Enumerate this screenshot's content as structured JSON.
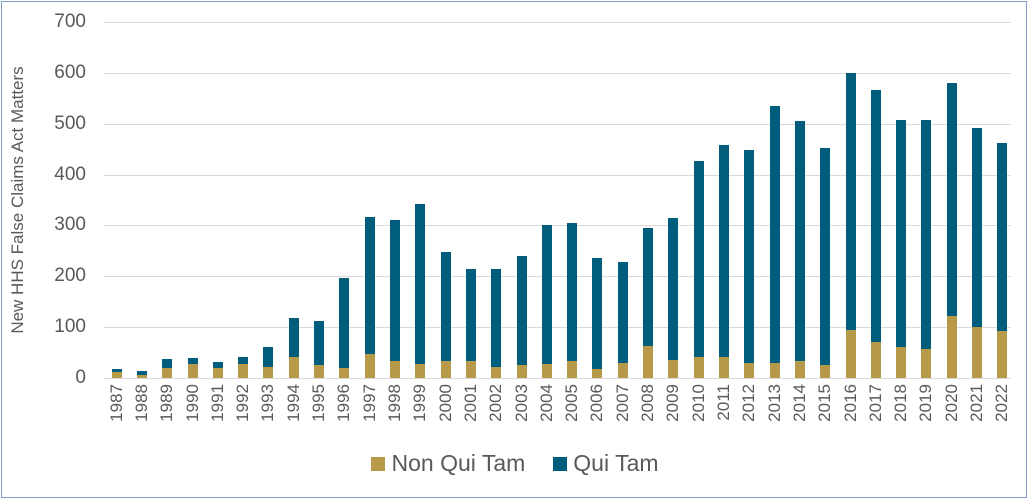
{
  "chart_data": {
    "type": "bar",
    "stacked": true,
    "title": "",
    "xlabel": "",
    "ylabel": "New HHS False Claims Act Matters",
    "ylim": [
      0,
      700
    ],
    "yticks": [
      0,
      100,
      200,
      300,
      400,
      500,
      600,
      700
    ],
    "grid": true,
    "legend_position": "bottom",
    "categories": [
      "1987",
      "1988",
      "1989",
      "1990",
      "1991",
      "1992",
      "1993",
      "1994",
      "1995",
      "1996",
      "1997",
      "1998",
      "1999",
      "2000",
      "2001",
      "2002",
      "2003",
      "2004",
      "2005",
      "2006",
      "2007",
      "2008",
      "2009",
      "2010",
      "2011",
      "2012",
      "2013",
      "2014",
      "2015",
      "2016",
      "2017",
      "2018",
      "2019",
      "2020",
      "2021",
      "2022"
    ],
    "series": [
      {
        "name": "Non Qui Tam",
        "color": "#b7994a",
        "values": [
          12,
          6,
          20,
          27,
          20,
          27,
          22,
          42,
          26,
          20,
          47,
          34,
          28,
          34,
          33,
          21,
          26,
          27,
          34,
          18,
          29,
          63,
          35,
          42,
          42,
          30,
          30,
          33,
          26,
          95,
          70,
          61,
          58,
          121,
          101,
          92
        ]
      },
      {
        "name": "Qui Tam",
        "color": "#005e7c",
        "values": [
          5,
          8,
          17,
          12,
          12,
          15,
          39,
          75,
          86,
          177,
          270,
          276,
          314,
          214,
          181,
          194,
          214,
          273,
          270,
          217,
          200,
          232,
          280,
          384,
          416,
          418,
          504,
          472,
          426,
          505,
          496,
          447,
          450,
          459,
          390,
          371
        ]
      }
    ],
    "totals": [
      17,
      14,
      37,
      39,
      32,
      42,
      61,
      117,
      112,
      197,
      317,
      310,
      342,
      248,
      214,
      215,
      240,
      300,
      304,
      235,
      229,
      295,
      315,
      426,
      458,
      448,
      534,
      505,
      452,
      600,
      566,
      508,
      508,
      580,
      491,
      463
    ]
  },
  "legend": {
    "items": [
      {
        "label": "Non Qui Tam",
        "color": "#b7994a"
      },
      {
        "label": "Qui Tam",
        "color": "#005e7c"
      }
    ]
  }
}
